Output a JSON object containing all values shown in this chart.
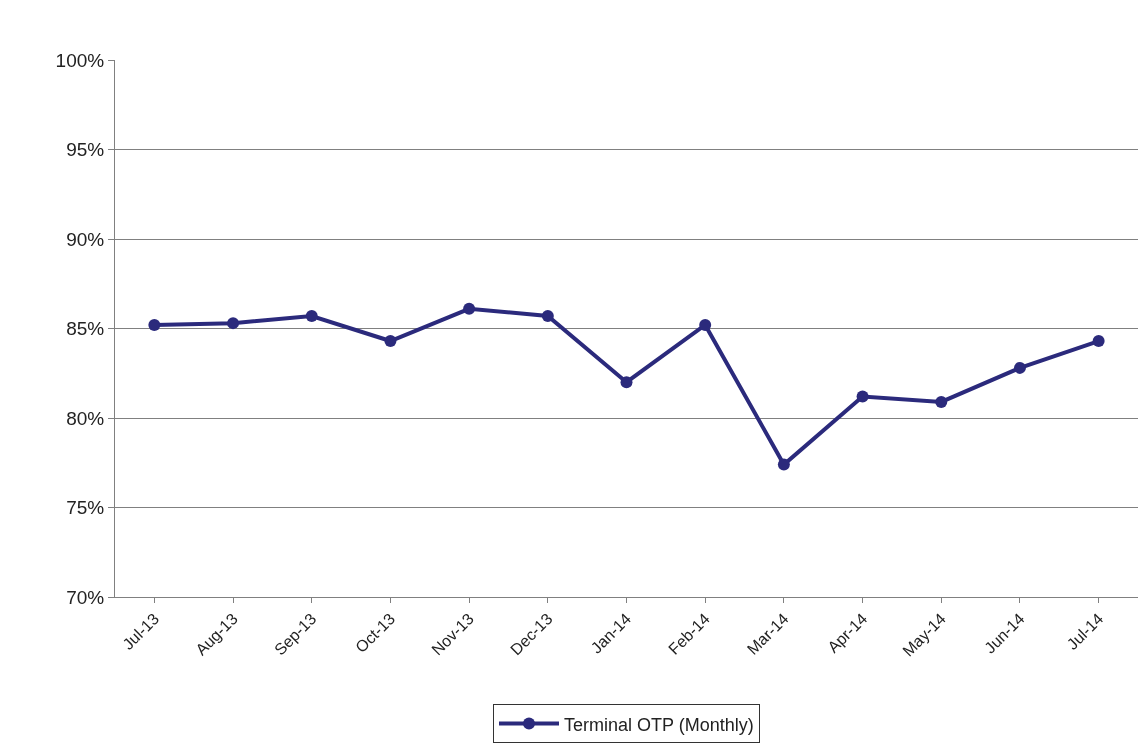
{
  "chart_data": {
    "type": "line",
    "categories": [
      "Jul-13",
      "Aug-13",
      "Sep-13",
      "Oct-13",
      "Nov-13",
      "Dec-13",
      "Jan-14",
      "Feb-14",
      "Mar-14",
      "Apr-14",
      "May-14",
      "Jun-14",
      "Jul-14"
    ],
    "series": [
      {
        "name": "Terminal OTP (Monthly)",
        "color": "#2b2a7c",
        "values": [
          85.2,
          85.3,
          85.7,
          84.3,
          86.1,
          85.7,
          82.0,
          85.2,
          77.4,
          81.2,
          80.9,
          82.8,
          84.3
        ]
      }
    ],
    "ylim": [
      70,
      100
    ],
    "yticks": [
      {
        "value": 70,
        "label": "70%"
      },
      {
        "value": 75,
        "label": "75%"
      },
      {
        "value": 80,
        "label": "80%"
      },
      {
        "value": 85,
        "label": "85%"
      },
      {
        "value": 90,
        "label": "90%"
      },
      {
        "value": 95,
        "label": "95%"
      },
      {
        "value": 100,
        "label": "100%"
      }
    ],
    "grid": "y",
    "legend": "bottom",
    "marker": "circle",
    "line_style": "solid"
  }
}
